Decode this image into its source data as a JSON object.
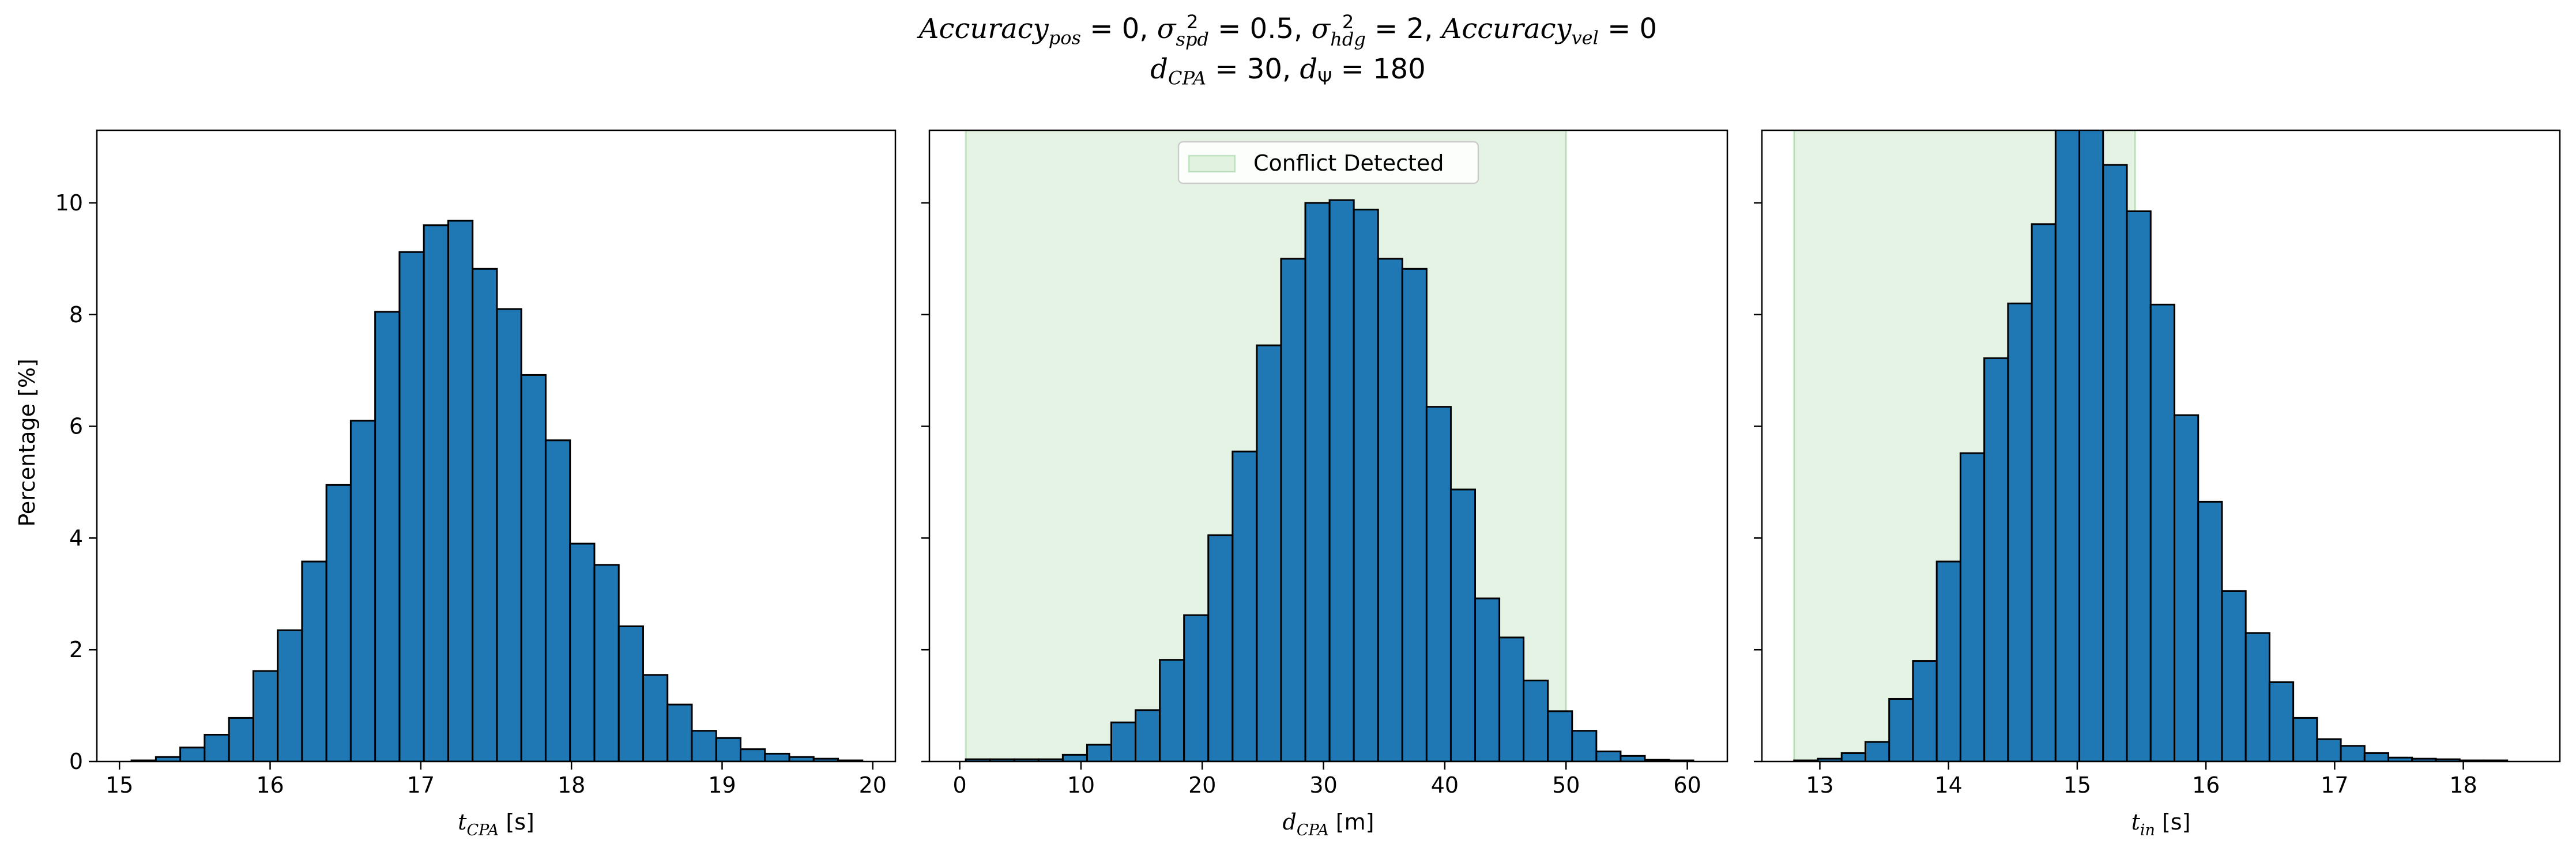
{
  "figure": {
    "title_line1": {
      "acc_pos_name": "Accuracy",
      "acc_pos_sub": "pos",
      "acc_pos_val": " = 0, ",
      "sigma_spd_symbol": "σ",
      "sigma_spd_sup": "2",
      "sigma_spd_sub": "spd",
      "sigma_spd_val": " = 0.5, ",
      "sigma_hdg_symbol": "σ",
      "sigma_hdg_sup": "2",
      "sigma_hdg_sub": "hdg",
      "sigma_hdg_val": " = 2, ",
      "acc_vel_name": "Accuracy",
      "acc_vel_sub": "vel",
      "acc_vel_val": " = 0"
    },
    "title_line2": {
      "dcpa_name": "d",
      "dcpa_sub": "CPA",
      "dcpa_val": " = 30, ",
      "dpsi_name": "d",
      "dpsi_sub": "Ψ",
      "dpsi_val": " = 180"
    },
    "ylabel": "Percentage [%]",
    "colors": {
      "bar_fill": "#1f77b4",
      "bar_edge": "#000000",
      "conflict_fill": "#2ca02c"
    }
  },
  "chart_data": [
    {
      "type": "bar",
      "xlabel_var": "t",
      "xlabel_sub": "CPA",
      "xlabel_unit": " [s]",
      "xlim": [
        14.85,
        20.15
      ],
      "ylim": [
        0,
        11.3
      ],
      "xticks": [
        15,
        16,
        17,
        18,
        19,
        20
      ],
      "yticks": [
        0,
        2,
        4,
        6,
        8,
        10
      ],
      "show_yticklabels": true,
      "bins": {
        "start": 15.08,
        "width": 0.1617,
        "values": [
          0.02,
          0.08,
          0.25,
          0.48,
          0.78,
          1.62,
          2.35,
          3.58,
          4.95,
          6.1,
          8.05,
          9.12,
          9.6,
          9.68,
          8.82,
          8.1,
          6.92,
          5.75,
          3.9,
          3.52,
          2.42,
          1.55,
          1.02,
          0.55,
          0.42,
          0.22,
          0.14,
          0.08,
          0.05,
          0.02
        ]
      }
    },
    {
      "type": "bar",
      "xlabel_var": "d",
      "xlabel_sub": "CPA",
      "xlabel_unit": " [m]",
      "xlim": [
        -2.5,
        63.3
      ],
      "ylim": [
        0,
        11.3
      ],
      "xticks": [
        0,
        10,
        20,
        30,
        40,
        50,
        60
      ],
      "yticks": [
        0,
        2,
        4,
        6,
        8,
        10
      ],
      "show_yticklabels": false,
      "conflict_region": [
        0.5,
        50
      ],
      "legend": {
        "label": "Conflict Detected",
        "loc": "upper center"
      },
      "bins": {
        "start": 0.5,
        "width": 2.0,
        "values": [
          0.04,
          0.04,
          0.04,
          0.04,
          0.12,
          0.3,
          0.7,
          0.92,
          1.82,
          2.62,
          4.05,
          5.55,
          7.45,
          9.0,
          10.0,
          10.05,
          9.88,
          9.0,
          8.82,
          6.35,
          4.87,
          2.92,
          2.22,
          1.45,
          0.9,
          0.55,
          0.18,
          0.1,
          0.03,
          0.02
        ]
      }
    },
    {
      "type": "bar",
      "xlabel_var": "t",
      "xlabel_sub": "in",
      "xlabel_unit": " [s]",
      "xlim": [
        12.55,
        18.75
      ],
      "ylim": [
        0,
        11.3
      ],
      "xticks": [
        13,
        14,
        15,
        16,
        17,
        18
      ],
      "yticks": [
        0,
        2,
        4,
        6,
        8,
        10
      ],
      "show_yticklabels": false,
      "conflict_region": [
        12.8,
        15.45
      ],
      "bins": {
        "start": 12.8,
        "width": 0.1847,
        "values": [
          0.02,
          0.05,
          0.15,
          0.35,
          1.12,
          1.8,
          3.58,
          5.52,
          7.22,
          8.2,
          9.62,
          11.5,
          11.55,
          10.68,
          9.85,
          8.18,
          6.2,
          4.65,
          3.05,
          2.3,
          1.42,
          0.78,
          0.4,
          0.28,
          0.15,
          0.07,
          0.05,
          0.04,
          0.02,
          0.02
        ]
      }
    }
  ]
}
